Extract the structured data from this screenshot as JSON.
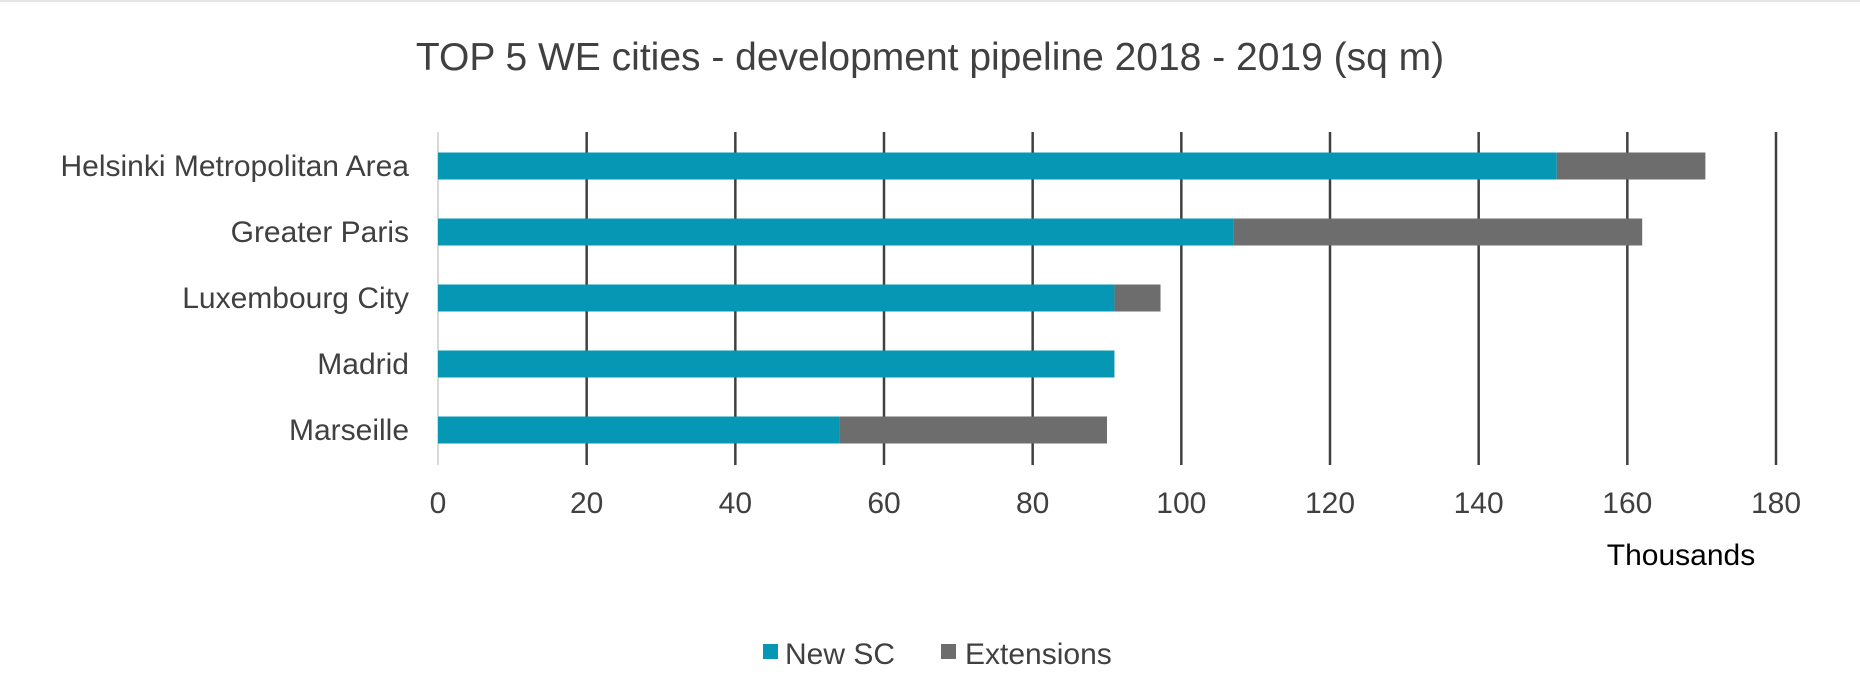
{
  "chart_data": {
    "type": "bar",
    "orientation": "horizontal",
    "stacked": true,
    "title": "TOP 5 WE cities - development pipeline 2018 - 2019 (sq m)",
    "categories": [
      "Helsinki Metropolitan Area",
      "Greater Paris",
      "Luxembourg City",
      "Madrid",
      "Marseille"
    ],
    "series": [
      {
        "name": "New SC",
        "color": "#0597b3",
        "values": [
          150.5,
          107,
          91,
          91,
          54
        ]
      },
      {
        "name": "Extensions",
        "color": "#6d6d6d",
        "values": [
          20,
          55,
          6.2,
          0,
          36
        ]
      }
    ],
    "xlim": [
      0,
      180
    ],
    "xticks": [
      "0",
      "20",
      "40",
      "60",
      "80",
      "100",
      "120",
      "140",
      "160",
      "180"
    ],
    "xticks_values": [
      0,
      20,
      40,
      60,
      80,
      100,
      120,
      140,
      160,
      180
    ],
    "unit_label": "Thousands",
    "grid": true,
    "legend_position": "bottom"
  }
}
